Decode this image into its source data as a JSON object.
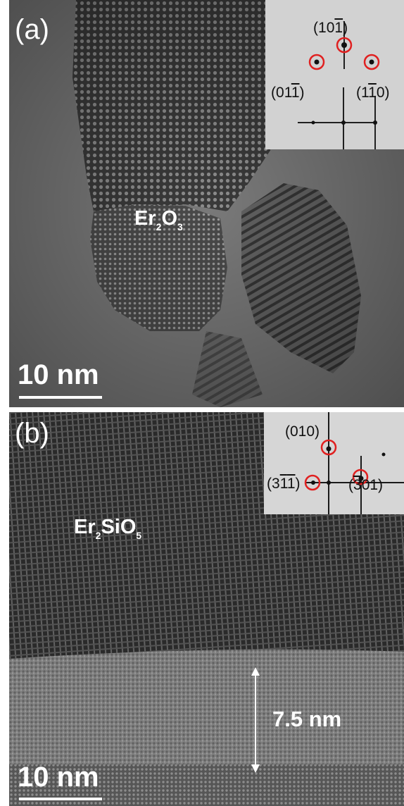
{
  "panel_a": {
    "label": "(a)",
    "material": {
      "main1": "Er",
      "sub1": "2",
      "main2": "O",
      "sub2": "3"
    },
    "scale_bar": "10 nm",
    "fft_indices": [
      {
        "open": "(1",
        "d1": "0",
        "d2": "1",
        "bar1": false,
        "bar2": true,
        "close": ")"
      },
      {
        "open": "(0",
        "d1": "1",
        "d2": "1",
        "bar1": false,
        "bar2": true,
        "close": ")"
      },
      {
        "open": "(1",
        "d1": "1",
        "d2": "0",
        "bar1": true,
        "bar2": false,
        "close": ")"
      }
    ]
  },
  "panel_b": {
    "label": "(b)",
    "material": {
      "main1": "Er",
      "sub1": "2",
      "main2": "SiO",
      "sub2": "5"
    },
    "scale_bar": "10 nm",
    "thickness": "7.5 nm",
    "fft_indices": [
      {
        "text": "(010)"
      },
      {
        "open": "(3",
        "d1": "1",
        "d2": "1",
        "close": ")"
      },
      {
        "open": "(",
        "d0": "3",
        "rest": "01)"
      }
    ]
  },
  "colors": {
    "highlight_circle": "#e02020",
    "label": "#ffffff"
  }
}
